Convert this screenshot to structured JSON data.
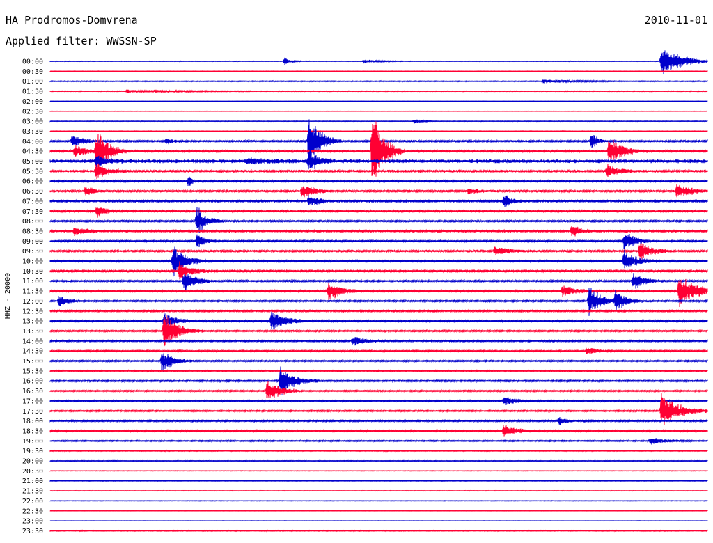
{
  "header": {
    "station": "HA Prodromos-Domvrena",
    "date": "2010-11-01",
    "filter_label": "Applied filter:",
    "filter_value": "WWSSN-SP"
  },
  "colors": {
    "even_hour": "#0000cc",
    "odd_half_hour": "#ff0033"
  },
  "chart_data": {
    "type": "line",
    "title": "HA Prodromos-Domvrena",
    "ylabel": "HHZ - 20000",
    "xlabel": "",
    "trace_labels": [
      "00:00",
      "00:30",
      "01:00",
      "01:30",
      "02:00",
      "02:30",
      "03:00",
      "03:30",
      "04:00",
      "04:30",
      "05:00",
      "05:30",
      "06:00",
      "06:30",
      "07:00",
      "07:30",
      "08:00",
      "08:30",
      "09:00",
      "09:30",
      "10:00",
      "10:30",
      "11:00",
      "11:30",
      "12:00",
      "12:30",
      "13:00",
      "13:30",
      "14:00",
      "14:30",
      "15:00",
      "15:30",
      "16:00",
      "16:30",
      "17:00",
      "17:30",
      "18:00",
      "18:30",
      "19:00",
      "19:30",
      "20:00",
      "20:30",
      "21:00",
      "21:30",
      "22:00",
      "22:30",
      "23:00",
      "23:30"
    ],
    "trace_noise": [
      0.3,
      0.3,
      0.5,
      0.4,
      0.2,
      0.2,
      0.3,
      0.4,
      1.0,
      1.2,
      2.2,
      1.4,
      1.0,
      1.2,
      1.3,
      1.4,
      1.0,
      1.4,
      0.9,
      1.2,
      1.6,
      1.3,
      1.0,
      1.3,
      0.9,
      1.0,
      1.0,
      0.9,
      0.9,
      0.8,
      0.8,
      0.7,
      0.9,
      0.8,
      0.8,
      0.8,
      0.9,
      0.9,
      0.7,
      0.5,
      0.4,
      0.3,
      0.4,
      0.3,
      0.3,
      0.2,
      0.2,
      0.5
    ],
    "events": [
      {
        "trace": 0,
        "minute": 10.7,
        "amp": 6,
        "dur": 0.25
      },
      {
        "trace": 0,
        "minute": 14.3,
        "amp": 3,
        "dur": 0.6
      },
      {
        "trace": 0,
        "minute": 27.9,
        "amp": 28,
        "dur": 0.8
      },
      {
        "trace": 2,
        "minute": 22.5,
        "amp": 3,
        "dur": 1.2
      },
      {
        "trace": 3,
        "minute": 3.5,
        "amp": 3,
        "dur": 0.6
      },
      {
        "trace": 3,
        "minute": 4.8,
        "amp": 2,
        "dur": 1.5
      },
      {
        "trace": 6,
        "minute": 16.6,
        "amp": 4,
        "dur": 0.3
      },
      {
        "trace": 8,
        "minute": 1.0,
        "amp": 10,
        "dur": 0.6
      },
      {
        "trace": 8,
        "minute": 5.3,
        "amp": 5,
        "dur": 0.3
      },
      {
        "trace": 8,
        "minute": 11.8,
        "amp": 46,
        "dur": 0.5
      },
      {
        "trace": 8,
        "minute": 24.7,
        "amp": 14,
        "dur": 0.3
      },
      {
        "trace": 9,
        "minute": 1.1,
        "amp": 10,
        "dur": 0.6
      },
      {
        "trace": 9,
        "minute": 2.1,
        "amp": 42,
        "dur": 0.5
      },
      {
        "trace": 9,
        "minute": 14.7,
        "amp": 66,
        "dur": 0.5
      },
      {
        "trace": 9,
        "minute": 25.5,
        "amp": 24,
        "dur": 0.6
      },
      {
        "trace": 10,
        "minute": 2.1,
        "amp": 10,
        "dur": 0.5
      },
      {
        "trace": 10,
        "minute": 9.0,
        "amp": 4,
        "dur": 1.0
      },
      {
        "trace": 10,
        "minute": 11.8,
        "amp": 18,
        "dur": 0.4
      },
      {
        "trace": 11,
        "minute": 2.1,
        "amp": 14,
        "dur": 0.5
      },
      {
        "trace": 11,
        "minute": 25.4,
        "amp": 12,
        "dur": 0.5
      },
      {
        "trace": 12,
        "minute": 6.3,
        "amp": 10,
        "dur": 0.2
      },
      {
        "trace": 13,
        "minute": 1.6,
        "amp": 8,
        "dur": 0.4
      },
      {
        "trace": 13,
        "minute": 11.5,
        "amp": 14,
        "dur": 0.5
      },
      {
        "trace": 13,
        "minute": 19.1,
        "amp": 6,
        "dur": 0.4
      },
      {
        "trace": 13,
        "minute": 28.6,
        "amp": 12,
        "dur": 0.6
      },
      {
        "trace": 14,
        "minute": 11.8,
        "amp": 12,
        "dur": 0.4
      },
      {
        "trace": 14,
        "minute": 20.7,
        "amp": 14,
        "dur": 0.3
      },
      {
        "trace": 15,
        "minute": 2.1,
        "amp": 10,
        "dur": 0.4
      },
      {
        "trace": 16,
        "minute": 6.7,
        "amp": 26,
        "dur": 0.4
      },
      {
        "trace": 17,
        "minute": 1.1,
        "amp": 8,
        "dur": 0.5
      },
      {
        "trace": 17,
        "minute": 23.8,
        "amp": 10,
        "dur": 0.4
      },
      {
        "trace": 18,
        "minute": 6.7,
        "amp": 12,
        "dur": 0.4
      },
      {
        "trace": 18,
        "minute": 26.2,
        "amp": 16,
        "dur": 0.5
      },
      {
        "trace": 19,
        "minute": 20.3,
        "amp": 8,
        "dur": 0.6
      },
      {
        "trace": 19,
        "minute": 26.9,
        "amp": 18,
        "dur": 0.5
      },
      {
        "trace": 20,
        "minute": 5.6,
        "amp": 26,
        "dur": 0.5
      },
      {
        "trace": 20,
        "minute": 26.2,
        "amp": 16,
        "dur": 0.5
      },
      {
        "trace": 21,
        "minute": 5.9,
        "amp": 16,
        "dur": 0.5
      },
      {
        "trace": 22,
        "minute": 6.1,
        "amp": 20,
        "dur": 0.5
      },
      {
        "trace": 22,
        "minute": 26.6,
        "amp": 14,
        "dur": 0.5
      },
      {
        "trace": 23,
        "minute": 12.7,
        "amp": 18,
        "dur": 0.5
      },
      {
        "trace": 23,
        "minute": 23.4,
        "amp": 10,
        "dur": 0.5
      },
      {
        "trace": 23,
        "minute": 28.7,
        "amp": 24,
        "dur": 0.8
      },
      {
        "trace": 24,
        "minute": 0.4,
        "amp": 10,
        "dur": 0.4
      },
      {
        "trace": 24,
        "minute": 24.6,
        "amp": 26,
        "dur": 0.5
      },
      {
        "trace": 24,
        "minute": 25.8,
        "amp": 16,
        "dur": 0.5
      },
      {
        "trace": 26,
        "minute": 5.2,
        "amp": 16,
        "dur": 0.5
      },
      {
        "trace": 26,
        "minute": 10.1,
        "amp": 18,
        "dur": 0.6
      },
      {
        "trace": 27,
        "minute": 5.2,
        "amp": 30,
        "dur": 0.6
      },
      {
        "trace": 28,
        "minute": 13.8,
        "amp": 8,
        "dur": 0.6
      },
      {
        "trace": 29,
        "minute": 24.5,
        "amp": 8,
        "dur": 0.4
      },
      {
        "trace": 30,
        "minute": 5.1,
        "amp": 18,
        "dur": 0.5
      },
      {
        "trace": 32,
        "minute": 10.5,
        "amp": 26,
        "dur": 0.6
      },
      {
        "trace": 33,
        "minute": 9.9,
        "amp": 24,
        "dur": 0.5
      },
      {
        "trace": 34,
        "minute": 20.7,
        "amp": 8,
        "dur": 0.6
      },
      {
        "trace": 35,
        "minute": 27.9,
        "amp": 28,
        "dur": 0.8
      },
      {
        "trace": 36,
        "minute": 23.2,
        "amp": 6,
        "dur": 0.5
      },
      {
        "trace": 37,
        "minute": 20.7,
        "amp": 10,
        "dur": 0.6
      },
      {
        "trace": 38,
        "minute": 27.4,
        "amp": 6,
        "dur": 0.6
      }
    ]
  }
}
